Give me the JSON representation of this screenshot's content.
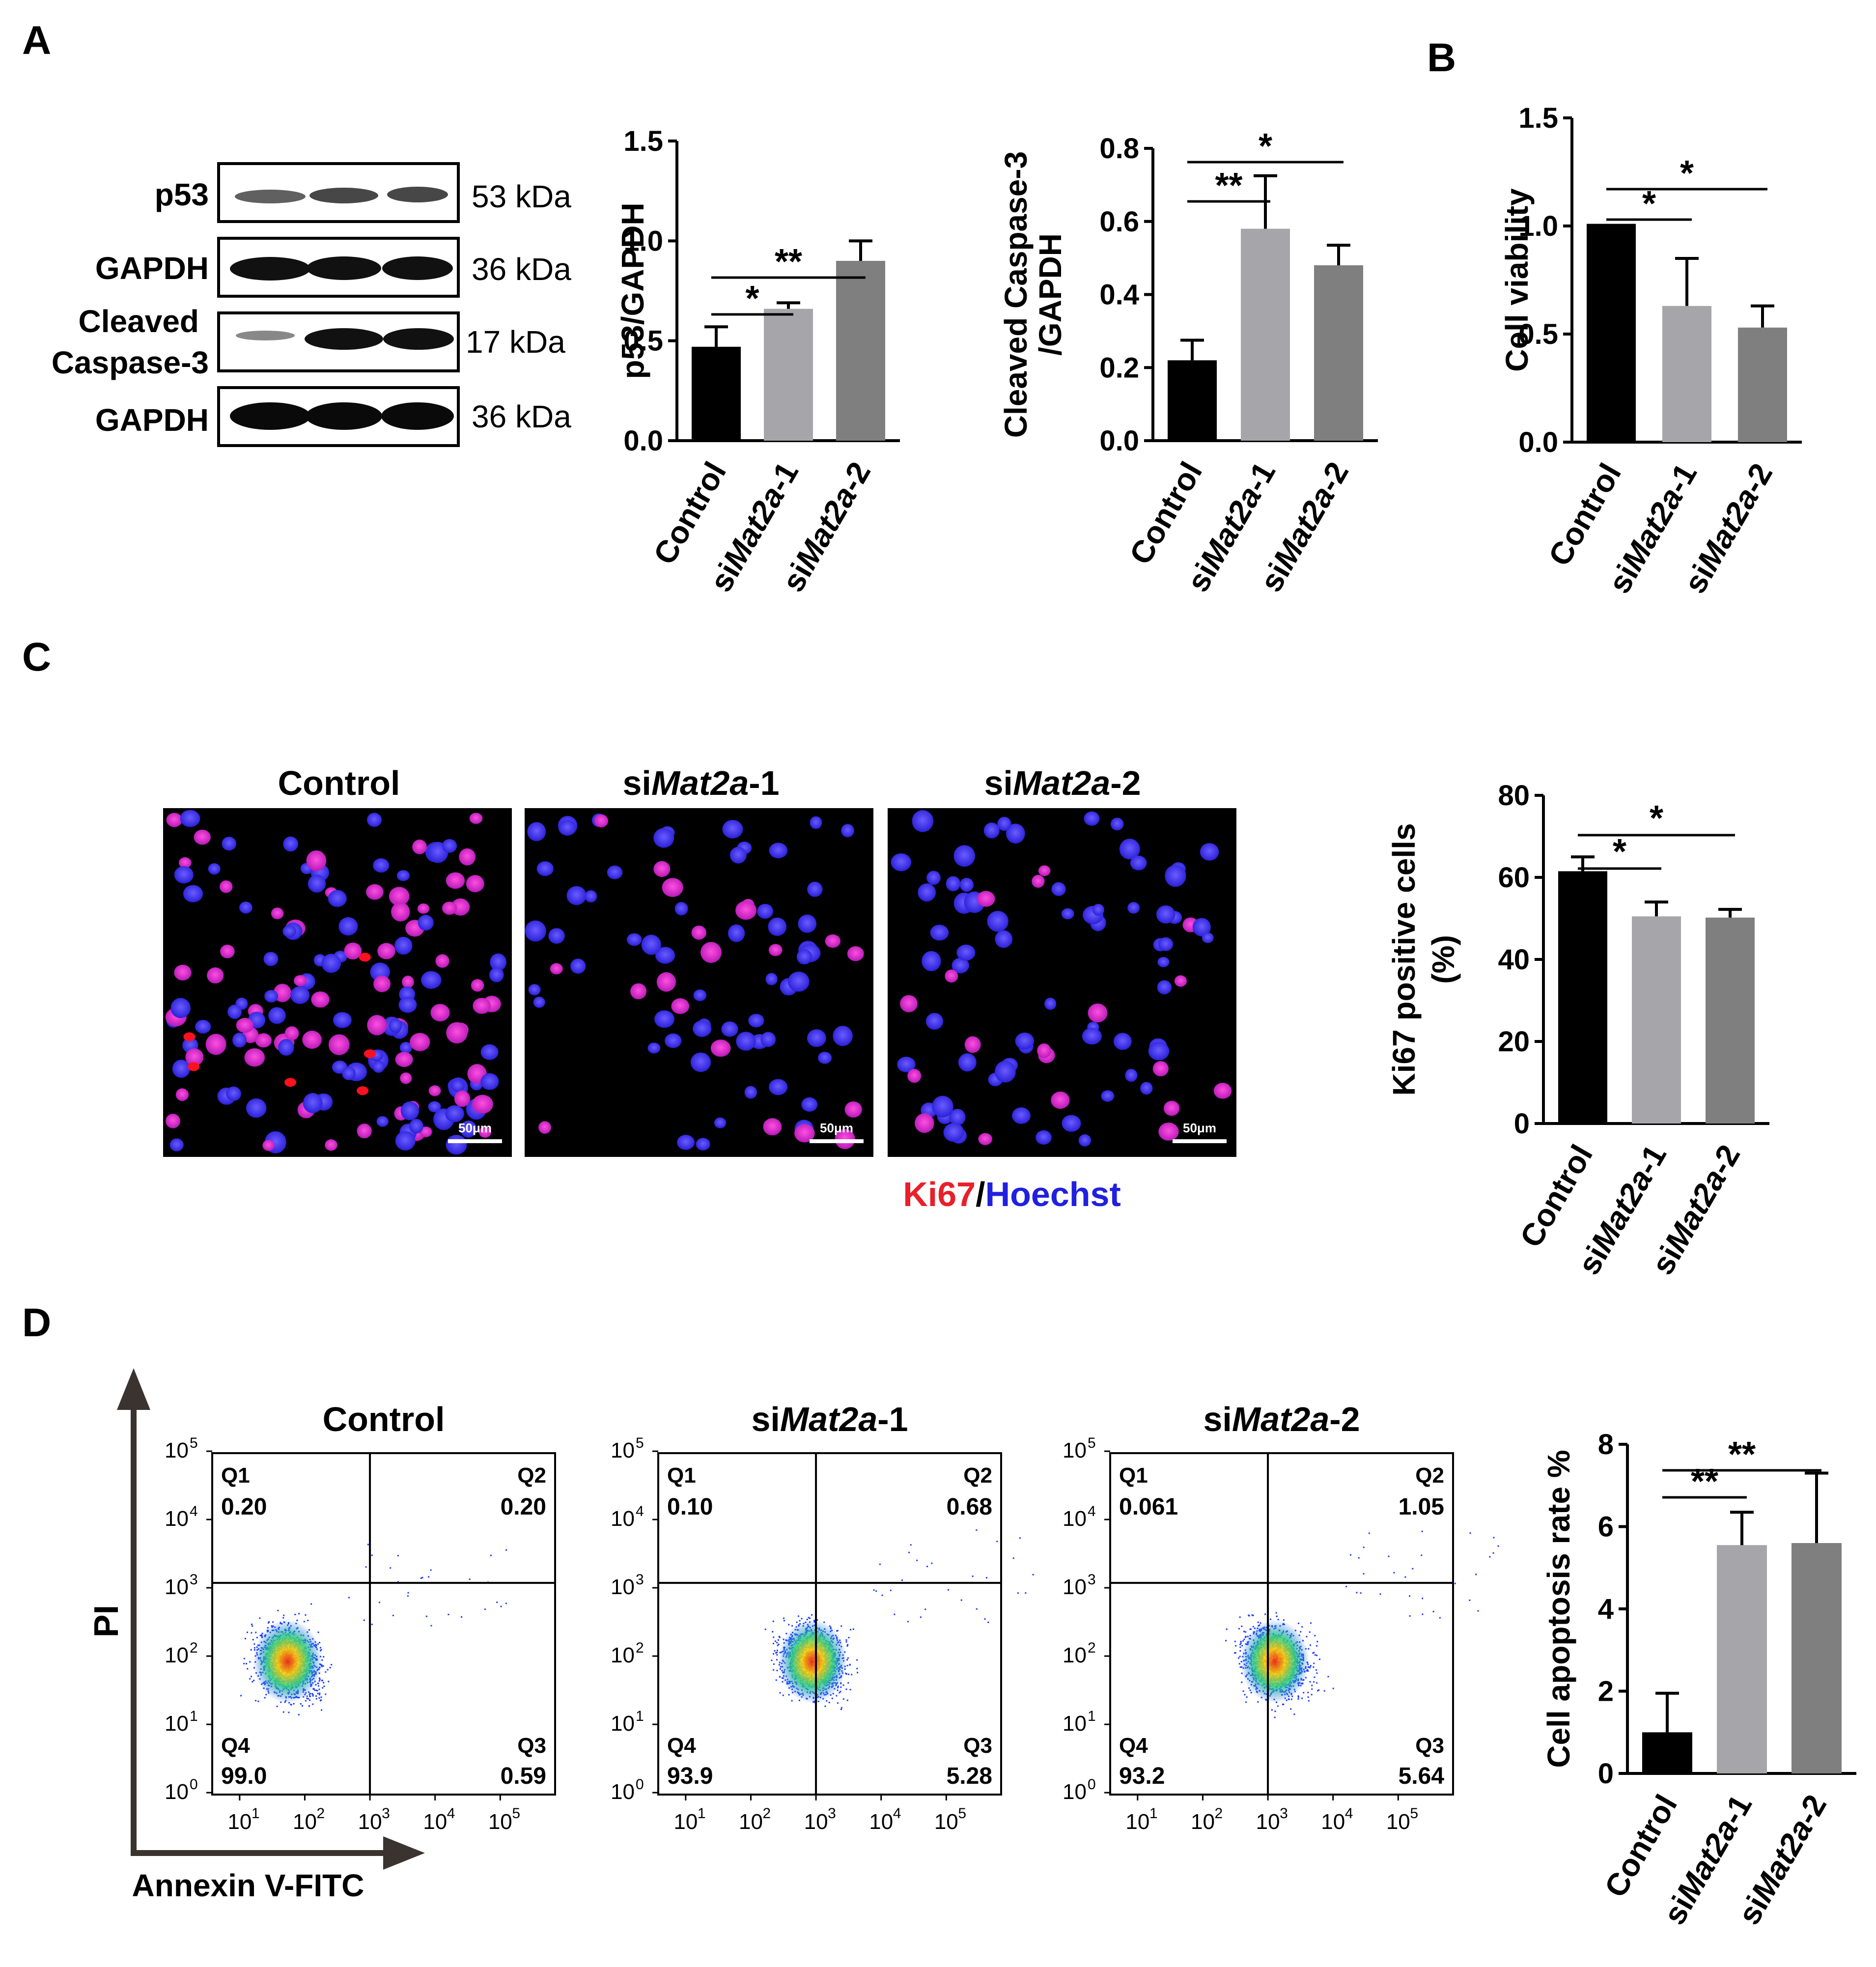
{
  "panels": {
    "A": "A",
    "B": "B",
    "C": "C",
    "D": "D"
  },
  "western_blot": {
    "rows": [
      {
        "label": "p53",
        "mw": "53 kDa"
      },
      {
        "label": "GAPDH",
        "mw": "36 kDa"
      },
      {
        "label_line1": "Cleaved",
        "label_line2": "Caspase-3",
        "mw": "17 kDa"
      },
      {
        "label": "GAPDH",
        "mw": "36 kDa"
      }
    ]
  },
  "group_labels": {
    "control": "Control",
    "si_prefix": "si",
    "gene": "Mat2a",
    "suffix1": "-1",
    "suffix2": "-2"
  },
  "chart_data": [
    {
      "id": "p53",
      "type": "bar",
      "categories": [
        "Control",
        "siMat2a-1",
        "siMat2a-2"
      ],
      "values": [
        0.47,
        0.66,
        0.9
      ],
      "errors": [
        0.1,
        0.03,
        0.1
      ],
      "colors": [
        "#000000",
        "#a6a6aa",
        "#7f7f7f"
      ],
      "ylabel": "p53/GAPDH",
      "ylim": [
        0,
        1.5
      ],
      "yticks": [
        "0.0",
        "0.5",
        "1.0",
        "1.5"
      ],
      "significance": [
        {
          "pair": [
            0,
            1
          ],
          "label": "*"
        },
        {
          "pair": [
            0,
            2
          ],
          "label": "**"
        }
      ]
    },
    {
      "id": "caspase",
      "type": "bar",
      "categories": [
        "Control",
        "siMat2a-1",
        "siMat2a-2"
      ],
      "values": [
        0.22,
        0.58,
        0.48
      ],
      "errors": [
        0.055,
        0.145,
        0.055
      ],
      "colors": [
        "#000000",
        "#a6a6aa",
        "#7f7f7f"
      ],
      "ylabel_line1": "Cleaved Caspase-3",
      "ylabel_line2": "/GAPDH",
      "ylim": [
        0,
        0.8
      ],
      "yticks": [
        "0.0",
        "0.2",
        "0.4",
        "0.6",
        "0.8"
      ],
      "significance": [
        {
          "pair": [
            0,
            1
          ],
          "label": "**"
        },
        {
          "pair": [
            0,
            2
          ],
          "label": "*"
        }
      ]
    },
    {
      "id": "viability",
      "type": "bar",
      "categories": [
        "Control",
        "siMat2a-1",
        "siMat2a-2"
      ],
      "values": [
        1.01,
        0.63,
        0.53
      ],
      "errors": [
        0,
        0.22,
        0.1
      ],
      "colors": [
        "#000000",
        "#a6a6aa",
        "#7f7f7f"
      ],
      "ylabel": "Cell viability",
      "ylim": [
        0,
        1.5
      ],
      "yticks": [
        "0.0",
        "0.5",
        "1.0",
        "1.5"
      ],
      "significance": [
        {
          "pair": [
            0,
            1
          ],
          "label": "*"
        },
        {
          "pair": [
            0,
            2
          ],
          "label": "*"
        }
      ]
    },
    {
      "id": "ki67",
      "type": "bar",
      "categories": [
        "Control",
        "siMat2a-1",
        "siMat2a-2"
      ],
      "values": [
        61.5,
        50.5,
        50.2
      ],
      "errors": [
        3.5,
        3.5,
        2.0
      ],
      "colors": [
        "#000000",
        "#a6a6aa",
        "#7f7f7f"
      ],
      "ylabel_line1": "Ki67 positive cells",
      "ylabel_line2": "(%)",
      "ylim": [
        0,
        80
      ],
      "yticks": [
        "0",
        "20",
        "40",
        "60",
        "80"
      ],
      "significance": [
        {
          "pair": [
            0,
            1
          ],
          "label": "*"
        },
        {
          "pair": [
            0,
            2
          ],
          "label": "*"
        }
      ]
    },
    {
      "id": "apoptosis",
      "type": "bar",
      "categories": [
        "Control",
        "siMat2a-1",
        "siMat2a-2"
      ],
      "values": [
        1.0,
        5.55,
        5.6
      ],
      "errors": [
        0.95,
        0.8,
        1.7
      ],
      "colors": [
        "#000000",
        "#a6a6aa",
        "#7f7f7f"
      ],
      "ylabel": "Cell apoptosis rate %",
      "ylim": [
        0,
        8
      ],
      "yticks": [
        "0",
        "2",
        "4",
        "6",
        "8"
      ],
      "significance": [
        {
          "pair": [
            0,
            1
          ],
          "label": "**"
        },
        {
          "pair": [
            0,
            2
          ],
          "label": "**"
        }
      ]
    }
  ],
  "microscopy": {
    "titles": [
      "Control",
      "siMat2a-1",
      "siMat2a-2"
    ],
    "scale_bar": "50μm",
    "stain_ki67": "Ki67",
    "stain_sep": "/",
    "stain_hoechst": "Hoechst",
    "colors": {
      "ki67": "#e8202a",
      "hoechst": "#2020e0"
    }
  },
  "flow": {
    "xlabel": "Annexin V-FITC",
    "ylabel": "PI",
    "quadrant_names": [
      "Q1",
      "Q2",
      "Q3",
      "Q4"
    ],
    "ticks": [
      "10",
      "10",
      "10",
      "10",
      "10",
      "10"
    ],
    "exponents": [
      "0",
      "1",
      "2",
      "3",
      "4",
      "5"
    ],
    "plots": [
      {
        "title": "Control",
        "q1": "0.20",
        "q2": "0.20",
        "q3": "0.59",
        "q4": "99.0"
      },
      {
        "title": "siMat2a-1",
        "q1": "0.10",
        "q2": "0.68",
        "q3": "5.28",
        "q4": "93.9"
      },
      {
        "title": "siMat2a-2",
        "q1": "0.061",
        "q2": "1.05",
        "q3": "5.64",
        "q4": "93.2"
      }
    ]
  }
}
